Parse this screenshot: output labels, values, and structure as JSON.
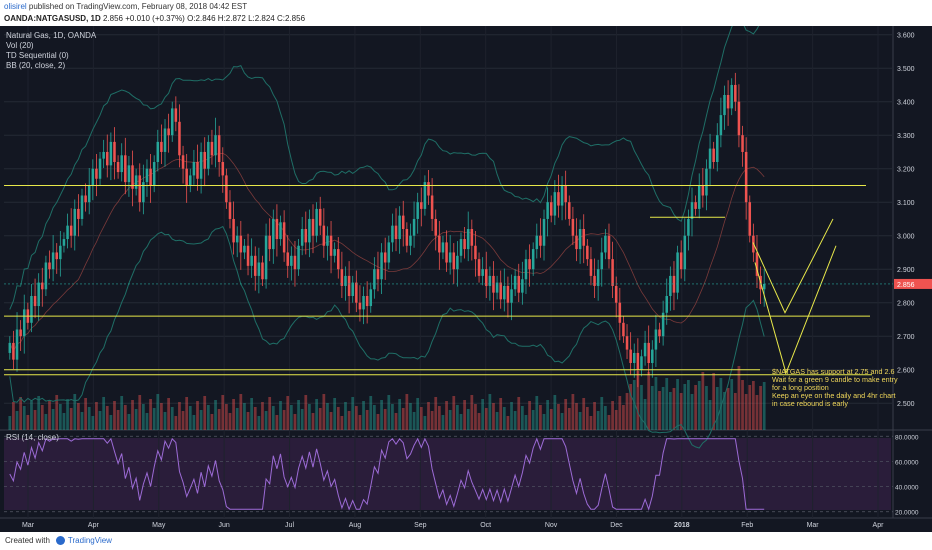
{
  "header": {
    "author": "olisirel",
    "published": "published on TradingView.com, February 08, 2018 04:42 EST",
    "symbol": "OANDA:NATGASUSD, 1D",
    "last": "2.856",
    "change": "+0.010 (+0.37%)",
    "open": "O:2.846",
    "high": "H:2.872",
    "low": "L:2.824",
    "close": "C:2.856"
  },
  "legend": {
    "instrument": "Natural Gas, 1D, OANDA",
    "vol": "Vol (20)",
    "td": "TD Sequential (0)",
    "bb": "BB (20, close, 2)"
  },
  "rsi_label": "RSI (14, close)",
  "note_lines": [
    "$NATGAS has support at 2.75 and 2.6",
    "Wait for a green 9 candle to make entry",
    "for a long position",
    "Keep an eye on the daily and 4hr chart",
    "in case rebound is early"
  ],
  "footer": {
    "created": "Created with",
    "brand": "TradingView"
  },
  "colors": {
    "background": "#131722",
    "up": "#26a69a",
    "down": "#ef5350",
    "level": "#e8e84a",
    "rsi_fill": "#2a1d3a",
    "rsi_line": "#9c6bd6",
    "bb": "#1f6e66"
  },
  "chart_data": {
    "type": "candlestick",
    "price_axis": [
      "3.600",
      "3.500",
      "3.400",
      "3.300",
      "3.200",
      "3.100",
      "3.000",
      "2.900",
      "2.800",
      "2.700",
      "2.600",
      "2.500"
    ],
    "price_range": [
      2.42,
      3.62
    ],
    "last_price_label": "2.856",
    "rsi_axis": [
      "80.0000",
      "60.0000",
      "40.0000",
      "20.0000"
    ],
    "rsi_range": [
      15,
      85
    ],
    "time_axis": [
      "Mar",
      "Apr",
      "May",
      "Jun",
      "Jul",
      "Aug",
      "Sep",
      "Oct",
      "Nov",
      "Dec",
      "2018",
      "Feb",
      "Mar",
      "Apr"
    ],
    "support_levels": [
      3.15,
      3.055,
      2.76,
      2.6,
      2.585
    ],
    "closes": [
      2.68,
      2.63,
      2.72,
      2.7,
      2.78,
      2.74,
      2.82,
      2.79,
      2.86,
      2.84,
      2.92,
      2.9,
      2.95,
      2.93,
      2.97,
      2.99,
      3.03,
      3.0,
      3.08,
      3.05,
      3.12,
      3.1,
      3.15,
      3.2,
      3.17,
      3.23,
      3.25,
      3.21,
      3.28,
      3.22,
      3.19,
      3.24,
      3.16,
      3.21,
      3.14,
      3.18,
      3.1,
      3.16,
      3.2,
      3.15,
      3.22,
      3.28,
      3.25,
      3.32,
      3.3,
      3.38,
      3.34,
      3.24,
      3.2,
      3.15,
      3.18,
      3.22,
      3.17,
      3.25,
      3.2,
      3.28,
      3.24,
      3.3,
      3.22,
      3.18,
      3.1,
      3.05,
      2.98,
      3.0,
      2.95,
      2.97,
      2.91,
      2.94,
      2.88,
      2.92,
      2.87,
      3.0,
      2.96,
      3.05,
      2.99,
      3.04,
      2.95,
      2.91,
      2.94,
      2.9,
      2.97,
      3.02,
      2.98,
      3.05,
      3.0,
      3.08,
      3.03,
      2.97,
      3.0,
      2.94,
      2.96,
      2.9,
      2.85,
      2.88,
      2.82,
      2.86,
      2.8,
      2.78,
      2.82,
      2.79,
      2.84,
      2.9,
      2.87,
      2.95,
      2.92,
      2.98,
      3.03,
      2.99,
      3.06,
      3.02,
      2.97,
      3.0,
      3.05,
      3.1,
      3.08,
      3.16,
      3.12,
      3.05,
      3.0,
      2.95,
      2.98,
      2.92,
      2.95,
      2.9,
      2.94,
      2.99,
      2.96,
      3.02,
      2.97,
      2.93,
      2.88,
      2.9,
      2.85,
      2.88,
      2.83,
      2.86,
      2.81,
      2.85,
      2.8,
      2.84,
      2.88,
      2.83,
      2.87,
      2.93,
      2.9,
      2.96,
      3.0,
      2.97,
      3.05,
      3.1,
      3.06,
      3.13,
      3.09,
      3.15,
      3.1,
      3.05,
      3.0,
      2.96,
      3.02,
      2.97,
      2.93,
      2.88,
      2.85,
      2.9,
      2.95,
      3.0,
      2.93,
      2.85,
      2.8,
      2.74,
      2.7,
      2.66,
      2.62,
      2.65,
      2.6,
      2.64,
      2.68,
      2.62,
      2.66,
      2.72,
      2.7,
      2.77,
      2.82,
      2.88,
      2.83,
      2.95,
      2.9,
      3.0,
      3.05,
      3.1,
      3.08,
      3.15,
      3.12,
      3.2,
      3.26,
      3.22,
      3.3,
      3.36,
      3.42,
      3.38,
      3.45,
      3.4,
      3.3,
      3.25,
      3.1,
      3.0,
      2.95,
      2.88,
      2.84,
      2.856
    ]
  }
}
